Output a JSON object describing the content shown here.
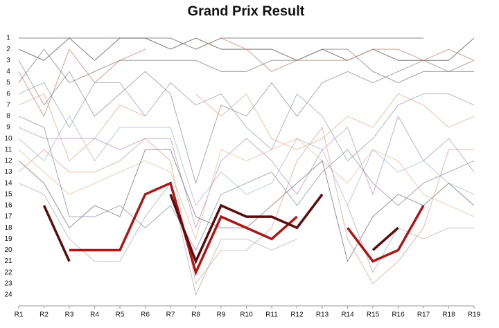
{
  "chart_data": {
    "type": "bump",
    "title": "Grand Prix Result",
    "categories": [
      "R1",
      "R2",
      "R3",
      "R4",
      "R5",
      "R6",
      "R7",
      "R8",
      "R9",
      "R10",
      "R11",
      "R12",
      "R13",
      "R14",
      "R15",
      "R16",
      "R17",
      "R18",
      "R19"
    ],
    "ylim": [
      1,
      24
    ],
    "inverted": true,
    "yticks": [
      1,
      2,
      3,
      4,
      5,
      6,
      7,
      8,
      9,
      10,
      11,
      12,
      13,
      14,
      15,
      16,
      17,
      18,
      19,
      20,
      21,
      22,
      23,
      24
    ],
    "series": [
      {
        "color": "#555555",
        "values": [
          1,
          1,
          1,
          1,
          1,
          1,
          1,
          2,
          1,
          1,
          1,
          1,
          1,
          1,
          1,
          1,
          1,
          null,
          null
        ]
      },
      {
        "color": "#444444",
        "values": [
          2,
          3,
          1,
          3,
          1,
          1,
          2,
          1,
          2,
          2,
          2,
          3,
          2,
          3,
          2,
          3,
          3,
          3,
          1
        ]
      },
      {
        "color": "#c97a6a",
        "values": [
          4,
          8,
          2,
          5,
          3,
          2,
          null,
          2,
          1,
          2,
          4,
          3,
          3,
          3,
          2,
          2,
          3,
          2,
          3
        ]
      },
      {
        "color": "#777777",
        "values": [
          5,
          2,
          5,
          4,
          3,
          3,
          3,
          3,
          4,
          4,
          3,
          3,
          2,
          2,
          4,
          5,
          4,
          4,
          4
        ]
      },
      {
        "color": "#8a9bbb",
        "values": [
          6,
          5,
          9,
          5,
          5,
          8,
          5,
          7,
          6,
          9,
          11,
          6,
          8,
          12,
          10,
          7,
          6,
          6,
          7
        ]
      },
      {
        "color": "#e0a88a",
        "values": [
          7,
          6,
          12,
          10,
          7,
          8,
          null,
          6,
          8,
          6,
          10,
          11,
          10,
          8,
          9,
          6,
          7,
          9,
          8
        ]
      },
      {
        "color": "#888888",
        "values": [
          3,
          7,
          4,
          8,
          6,
          4,
          6,
          14,
          7,
          8,
          5,
          8,
          5,
          4,
          5,
          4,
          3,
          4,
          3
        ]
      },
      {
        "color": "#b38fc0",
        "values": [
          9,
          10,
          10,
          10,
          11,
          10,
          10,
          18,
          12,
          10,
          12,
          15,
          11,
          9,
          15,
          8,
          12,
          10,
          13
        ]
      },
      {
        "color": "#9fb5cf",
        "values": [
          10,
          12,
          8,
          12,
          9,
          9,
          9,
          16,
          13,
          15,
          14,
          10,
          11,
          16,
          11,
          13,
          12,
          14,
          15
        ]
      },
      {
        "color": "#e8b898",
        "values": [
          11,
          13,
          15,
          14,
          13,
          12,
          13,
          19,
          11,
          12,
          11,
          10,
          12,
          14,
          11,
          12,
          15,
          16,
          17
        ]
      },
      {
        "color": "#666666",
        "values": [
          12,
          14,
          18,
          16,
          17,
          11,
          11,
          17,
          18,
          18,
          16,
          14,
          12,
          21,
          17,
          15,
          16,
          14,
          16
        ]
      },
      {
        "color": "#aaaaaa",
        "values": [
          14,
          15,
          19,
          21,
          21,
          17,
          14,
          24,
          19,
          19,
          20,
          19,
          null,
          16,
          22,
          18,
          19,
          18,
          18
        ]
      },
      {
        "color": "#7a8aa0",
        "values": [
          8,
          9,
          17,
          17,
          16,
          18,
          16,
          20,
          15,
          14,
          13,
          16,
          13,
          11,
          14,
          16,
          14,
          13,
          12
        ]
      },
      {
        "color": "#d4a090",
        "values": [
          13,
          11,
          13,
          13,
          12,
          10,
          12,
          23,
          20,
          20,
          18,
          12,
          9,
          19,
          23,
          21,
          18,
          11,
          11
        ]
      },
      {
        "color": "#b01515",
        "highlight": true,
        "values": [
          null,
          null,
          20,
          20,
          20,
          15,
          14,
          22,
          17,
          18,
          19,
          17,
          null,
          18,
          21,
          20,
          16,
          null,
          null
        ]
      },
      {
        "color": "#5c0a0a",
        "highlight": true,
        "values": [
          null,
          16,
          21,
          null,
          null,
          null,
          15,
          21,
          16,
          17,
          17,
          18,
          15,
          null,
          20,
          18,
          null,
          null,
          null
        ]
      }
    ]
  }
}
